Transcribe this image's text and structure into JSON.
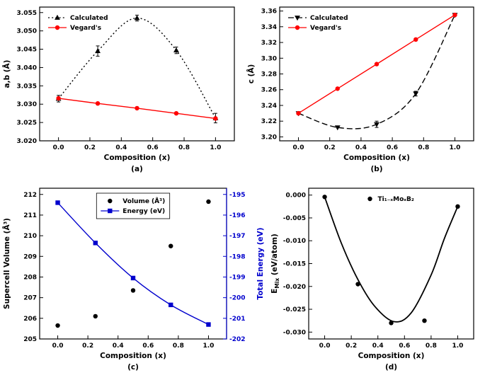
{
  "figure_title": "",
  "colors": {
    "black": "#000000",
    "red": "#ff0000",
    "blue": "#0000cd",
    "background": "#ffffff"
  },
  "chart_data": [
    {
      "panel": "a",
      "type": "line",
      "caption": "(a)",
      "xlabel": "Composition (x)",
      "ylabel": "a,b (Å)",
      "xlim": [
        -0.12,
        1.12
      ],
      "ylim": [
        3.02,
        3.0565
      ],
      "xticks": [
        0.0,
        0.2,
        0.4,
        0.6,
        0.8,
        1.0
      ],
      "yticks": [
        3.02,
        3.025,
        3.03,
        3.035,
        3.04,
        3.045,
        3.05,
        3.055
      ],
      "xtick_decimals": 1,
      "ytick_decimals": 3,
      "grid": false,
      "legend": {
        "pos": "top-left",
        "box": false
      },
      "series": [
        {
          "name": "Calculated",
          "color": "#000000",
          "line": "dotted",
          "smooth": true,
          "marker": "triangle-up",
          "x": [
            0.0,
            0.25,
            0.5,
            0.75,
            1.0
          ],
          "y": [
            3.0315,
            3.0445,
            3.0535,
            3.0447,
            3.0262
          ],
          "yerr": [
            0.0009,
            0.0014,
            0.0008,
            0.0009,
            0.0013
          ]
        },
        {
          "name": "Vegard's",
          "color": "#ff0000",
          "line": "solid",
          "smooth": false,
          "marker": "circle",
          "x": [
            0.0,
            0.25,
            0.5,
            0.75,
            1.0
          ],
          "y": [
            3.0316,
            3.0302,
            3.0289,
            3.0275,
            3.0261
          ]
        }
      ]
    },
    {
      "panel": "b",
      "type": "line",
      "caption": "(b)",
      "xlabel": "Composition (x)",
      "ylabel": "c (Å)",
      "xlim": [
        -0.12,
        1.12
      ],
      "ylim": [
        3.195,
        3.365
      ],
      "xticks": [
        0.0,
        0.2,
        0.4,
        0.6,
        0.8,
        1.0
      ],
      "yticks": [
        3.2,
        3.22,
        3.24,
        3.26,
        3.28,
        3.3,
        3.32,
        3.34,
        3.36
      ],
      "xtick_decimals": 1,
      "ytick_decimals": 2,
      "grid": false,
      "legend": {
        "pos": "top-left",
        "box": false
      },
      "series": [
        {
          "name": "Calculated",
          "color": "#000000",
          "line": "dashed",
          "smooth": true,
          "marker": "triangle-down",
          "x": [
            0.0,
            0.25,
            0.5,
            0.75,
            1.0
          ],
          "y": [
            3.23,
            3.212,
            3.216,
            3.255,
            3.355
          ],
          "yerr": [
            0,
            0,
            0.004,
            0.003,
            0
          ]
        },
        {
          "name": "Vegard's",
          "color": "#ff0000",
          "line": "solid",
          "smooth": false,
          "marker": "circle",
          "x": [
            0.0,
            0.25,
            0.5,
            0.75,
            1.0
          ],
          "y": [
            3.23,
            3.2613,
            3.2925,
            3.3238,
            3.355
          ]
        }
      ]
    },
    {
      "panel": "c",
      "type": "scatter-line-dual-axis",
      "caption": "(c)",
      "xlabel": "Composition (x)",
      "ylabel": "Supercell Volume (Å³)",
      "xlim": [
        -0.12,
        1.12
      ],
      "ylim": [
        205,
        212.3
      ],
      "xticks": [
        0.0,
        0.2,
        0.4,
        0.6,
        0.8,
        1.0
      ],
      "yticks": [
        205,
        206,
        207,
        208,
        209,
        210,
        211,
        212
      ],
      "xtick_decimals": 1,
      "ytick_decimals": 0,
      "grid": false,
      "right_axis": {
        "ylabel": "Total Energy (eV)",
        "color": "#0000cd",
        "ylim": [
          -202,
          -194.7
        ],
        "yticks": [
          -202,
          -201,
          -200,
          -199,
          -198,
          -197,
          -196,
          -195
        ],
        "ytick_decimals": 0
      },
      "legend": {
        "pos": "top-center",
        "box": true
      },
      "series": [
        {
          "name": "Volume (Å³)",
          "color": "#000000",
          "line": "none",
          "marker": "circle",
          "axis": "left",
          "x": [
            0.0,
            0.25,
            0.5,
            0.75,
            1.0
          ],
          "y": [
            205.65,
            206.1,
            207.35,
            209.5,
            211.65
          ]
        },
        {
          "name": "Energy (eV)",
          "color": "#0000cd",
          "line": "solid",
          "smooth": true,
          "marker": "square",
          "axis": "right",
          "x": [
            0.0,
            0.25,
            0.5,
            0.75,
            1.0
          ],
          "y": [
            -195.4,
            -197.35,
            -199.05,
            -200.35,
            -201.3
          ]
        }
      ]
    },
    {
      "panel": "d",
      "type": "scatter-with-fit",
      "caption": "(d)",
      "xlabel": "Composition (x)",
      "ylabel": [
        {
          "t": "E"
        },
        {
          "t": "Mix",
          "sub": true
        },
        {
          "t": " (eV/atom)"
        }
      ],
      "xlim": [
        -0.12,
        1.12
      ],
      "ylim": [
        -0.0315,
        0.0015
      ],
      "xticks": [
        0.0,
        0.2,
        0.4,
        0.6,
        0.8,
        1.0
      ],
      "yticks": [
        0.0,
        -0.005,
        -0.01,
        -0.015,
        -0.02,
        -0.025,
        -0.03
      ],
      "xtick_decimals": 1,
      "ytick_decimals": 3,
      "grid": false,
      "legend": {
        "pos": "top-center",
        "box": false
      },
      "series": [
        {
          "name": "Ti₁₋ₓMoₓB₂",
          "color": "#000000",
          "line": "none",
          "marker": "circle",
          "x": [
            0.0,
            0.25,
            0.5,
            0.75,
            1.0
          ],
          "y": [
            -0.0004,
            -0.0195,
            -0.028,
            -0.0275,
            -0.0025
          ]
        },
        {
          "name": "fit-curve",
          "legend": false,
          "color": "#000000",
          "line": "solid",
          "smooth": true,
          "marker": "none",
          "width": 1.8,
          "x": [
            0.0,
            0.125,
            0.25,
            0.375,
            0.52,
            0.65,
            0.8,
            0.9,
            1.0
          ],
          "y": [
            -0.0004,
            -0.0105,
            -0.0185,
            -0.0243,
            -0.0277,
            -0.0258,
            -0.0175,
            -0.0095,
            -0.0025
          ]
        }
      ]
    }
  ]
}
